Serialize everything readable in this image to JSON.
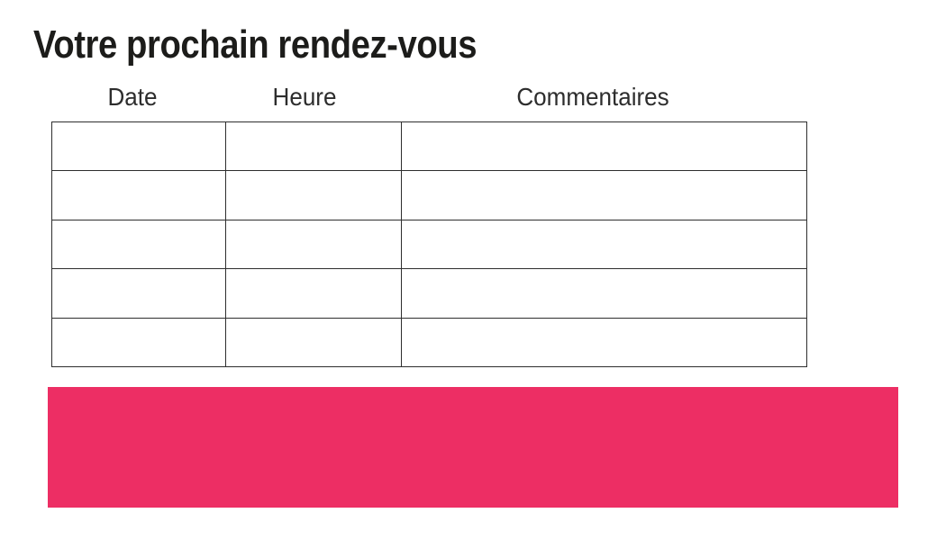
{
  "page": {
    "title": "Votre prochain rendez-vous"
  },
  "colors": {
    "accent_pink": "#ED2E64",
    "table_border": "#2E2E2E",
    "title_text": "#1C1C1A",
    "header_text": "#2D2D2D"
  },
  "table": {
    "headers": [
      "Date",
      "Heure",
      "Commentaires"
    ],
    "rows": [
      [
        "",
        "",
        ""
      ],
      [
        "",
        "",
        ""
      ],
      [
        "",
        "",
        ""
      ],
      [
        "",
        "",
        ""
      ],
      [
        "",
        "",
        ""
      ]
    ]
  },
  "footer_band": {
    "label": ""
  }
}
